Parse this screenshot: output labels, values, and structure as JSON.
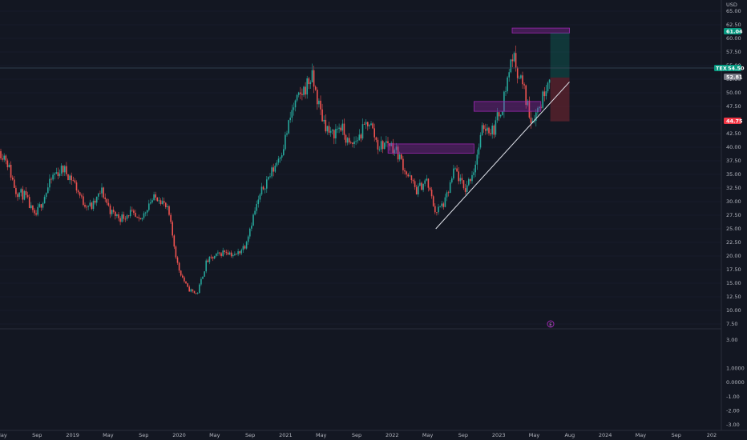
{
  "chart_data": {
    "type": "candlestick",
    "currency": "USD",
    "y_axis_ticks": [
      "65.00",
      "62.50",
      "60.00",
      "57.50",
      "55.00",
      "52.50",
      "50.00",
      "47.50",
      "45.00",
      "42.50",
      "40.00",
      "37.50",
      "35.00",
      "32.50",
      "30.00",
      "27.50",
      "25.00",
      "22.50",
      "20.00",
      "17.50",
      "15.00",
      "12.50",
      "10.00",
      "7.50"
    ],
    "ylim": [
      7.5,
      65
    ],
    "indicator_ticks": [
      "3.00",
      "1.0000",
      "0.0000",
      "-1.00",
      "-2.00",
      "-3.00"
    ],
    "x_axis_ticks": [
      "May",
      "Sep",
      "2019",
      "May",
      "Sep",
      "2020",
      "May",
      "Sep",
      "2021",
      "May",
      "Sep",
      "2022",
      "May",
      "Sep",
      "2023",
      "May",
      "Aug",
      "2024",
      "May",
      "Sep",
      "202"
    ],
    "x_range": [
      "2018-05",
      "2025-01"
    ],
    "price_tags": {
      "target": "61.04",
      "last_symbol": "TEX",
      "last_value": "54.50",
      "entry": "52.81",
      "stop": "44.75"
    },
    "annotation_glyph": "E",
    "zones": [
      {
        "name": "demand-zone-2022",
        "from": "2022-01",
        "to": "2022-10",
        "low": 38.9,
        "high": 40.6
      },
      {
        "name": "supply-zone-2023",
        "from": "2022-10",
        "to": "2023-05",
        "low": 46.6,
        "high": 48.4
      },
      {
        "name": "top-zone-2023",
        "from": "2023-02",
        "to": "2023-08",
        "low": 61.0,
        "high": 61.9
      }
    ],
    "trendline": {
      "from": [
        "2022-06",
        25.0
      ],
      "to": [
        "2023-08",
        52.0
      ]
    },
    "position": {
      "from": "2023-06",
      "to": "2023-08",
      "entry": 52.81,
      "target": 61.04,
      "stop": 44.75
    },
    "monthly_closes": [
      {
        "date": "2018-05",
        "v": 42
      },
      {
        "date": "2018-06",
        "v": 45
      },
      {
        "date": "2018-07",
        "v": 43
      },
      {
        "date": "2018-08",
        "v": 40
      },
      {
        "date": "2018-09",
        "v": 38
      },
      {
        "date": "2018-10",
        "v": 32
      },
      {
        "date": "2018-11",
        "v": 31
      },
      {
        "date": "2018-12",
        "v": 27
      },
      {
        "date": "2019-01",
        "v": 31
      },
      {
        "date": "2019-02",
        "v": 35
      },
      {
        "date": "2019-03",
        "v": 36
      },
      {
        "date": "2019-04",
        "v": 34
      },
      {
        "date": "2019-05",
        "v": 30
      },
      {
        "date": "2019-06",
        "v": 29
      },
      {
        "date": "2019-07",
        "v": 32
      },
      {
        "date": "2019-08",
        "v": 28
      },
      {
        "date": "2019-09",
        "v": 27
      },
      {
        "date": "2019-10",
        "v": 28
      },
      {
        "date": "2019-11",
        "v": 26
      },
      {
        "date": "2019-12",
        "v": 30
      },
      {
        "date": "2020-01",
        "v": 31
      },
      {
        "date": "2020-02",
        "v": 28
      },
      {
        "date": "2020-03",
        "v": 18
      },
      {
        "date": "2020-04",
        "v": 14
      },
      {
        "date": "2020-05",
        "v": 13
      },
      {
        "date": "2020-06",
        "v": 19
      },
      {
        "date": "2020-07",
        "v": 20
      },
      {
        "date": "2020-08",
        "v": 21
      },
      {
        "date": "2020-09",
        "v": 20
      },
      {
        "date": "2020-10",
        "v": 22
      },
      {
        "date": "2020-11",
        "v": 28
      },
      {
        "date": "2020-12",
        "v": 33
      },
      {
        "date": "2021-01",
        "v": 36
      },
      {
        "date": "2021-02",
        "v": 40
      },
      {
        "date": "2021-03",
        "v": 47
      },
      {
        "date": "2021-04",
        "v": 50
      },
      {
        "date": "2021-05",
        "v": 53
      },
      {
        "date": "2021-06",
        "v": 46
      },
      {
        "date": "2021-07",
        "v": 42
      },
      {
        "date": "2021-08",
        "v": 44
      },
      {
        "date": "2021-09",
        "v": 40
      },
      {
        "date": "2021-10",
        "v": 42
      },
      {
        "date": "2021-11",
        "v": 45
      },
      {
        "date": "2021-12",
        "v": 40
      },
      {
        "date": "2022-01",
        "v": 41
      },
      {
        "date": "2022-02",
        "v": 39
      },
      {
        "date": "2022-03",
        "v": 35
      },
      {
        "date": "2022-04",
        "v": 32
      },
      {
        "date": "2022-05",
        "v": 34
      },
      {
        "date": "2022-06",
        "v": 28
      },
      {
        "date": "2022-07",
        "v": 30
      },
      {
        "date": "2022-08",
        "v": 36
      },
      {
        "date": "2022-09",
        "v": 32
      },
      {
        "date": "2022-10",
        "v": 36
      },
      {
        "date": "2022-11",
        "v": 44
      },
      {
        "date": "2022-12",
        "v": 43
      },
      {
        "date": "2023-01",
        "v": 48
      },
      {
        "date": "2023-02",
        "v": 57
      },
      {
        "date": "2023-03",
        "v": 52
      },
      {
        "date": "2023-04",
        "v": 45
      },
      {
        "date": "2023-05",
        "v": 48
      },
      {
        "date": "2023-06",
        "v": 54.5
      }
    ]
  }
}
